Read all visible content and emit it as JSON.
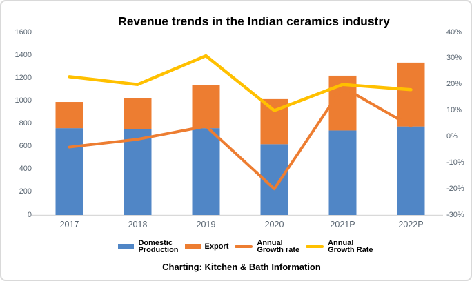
{
  "title": "Revenue trends in the Indian ceramics industry",
  "caption": "Charting: Kitchen & Bath Information",
  "colors": {
    "domestic_bar": "#5086C6",
    "export_bar": "#ED7D31",
    "growth_rate_line": "#ED7D31",
    "growth_rate_line_2": "#FFC000",
    "axis_text": "#5A6672",
    "axis_line": "#D9D9D9",
    "text": "#000000",
    "border": "#D9D9D9",
    "background": "#FFFFFF"
  },
  "chart_data": {
    "type": "bar",
    "subtype": "stacked-bar-with-lines-combo",
    "title": "Revenue trends in the Indian ceramics industry",
    "categories": [
      "2017",
      "2018",
      "2019",
      "2020",
      "2021P",
      "2022P"
    ],
    "series": [
      {
        "name": "Domestic Production",
        "type": "bar",
        "stacked": true,
        "axis": "left",
        "color": "#5086C6",
        "values": [
          760,
          750,
          760,
          620,
          740,
          775
        ]
      },
      {
        "name": "Export",
        "type": "bar",
        "stacked": true,
        "axis": "left",
        "color": "#ED7D31",
        "values": [
          230,
          275,
          380,
          395,
          480,
          560
        ]
      },
      {
        "name": "Annual Growth rate",
        "type": "line",
        "axis": "right",
        "color": "#ED7D31",
        "values": [
          -4,
          -1,
          4,
          -20,
          19,
          4
        ]
      },
      {
        "name": "Annual Growth Rate",
        "type": "line",
        "axis": "right",
        "color": "#FFC000",
        "values": [
          23,
          20,
          31,
          10,
          20,
          18
        ]
      }
    ],
    "stacked_totals": [
      990,
      1025,
      1140,
      1015,
      1220,
      1335
    ],
    "left_axis": {
      "min": 0,
      "max": 1600,
      "step": 200,
      "ticks": [
        "0",
        "200",
        "400",
        "600",
        "800",
        "1000",
        "1200",
        "1400",
        "1600"
      ]
    },
    "right_axis": {
      "min": -30,
      "max": 40,
      "step": 10,
      "ticks_top_to_bottom": [
        "40%",
        "30%",
        "20%",
        "10%",
        "0%",
        "-10%",
        "-20%",
        "-30%"
      ]
    },
    "gridlines": false,
    "legend_position": "bottom",
    "legend": [
      {
        "name": "Domestic Production",
        "swatch": "bar",
        "color": "#5086C6",
        "lines": [
          "Domestic",
          "Production"
        ]
      },
      {
        "name": "Export",
        "swatch": "bar",
        "color": "#ED7D31",
        "lines": [
          "Export"
        ]
      },
      {
        "name": "Annual Growth rate",
        "swatch": "line",
        "color": "#ED7D31",
        "lines": [
          "Annual",
          "Growth rate"
        ]
      },
      {
        "name": "Annual Growth Rate",
        "swatch": "line",
        "color": "#FFC000",
        "lines": [
          "Annual",
          "Growth Rate"
        ]
      }
    ]
  }
}
